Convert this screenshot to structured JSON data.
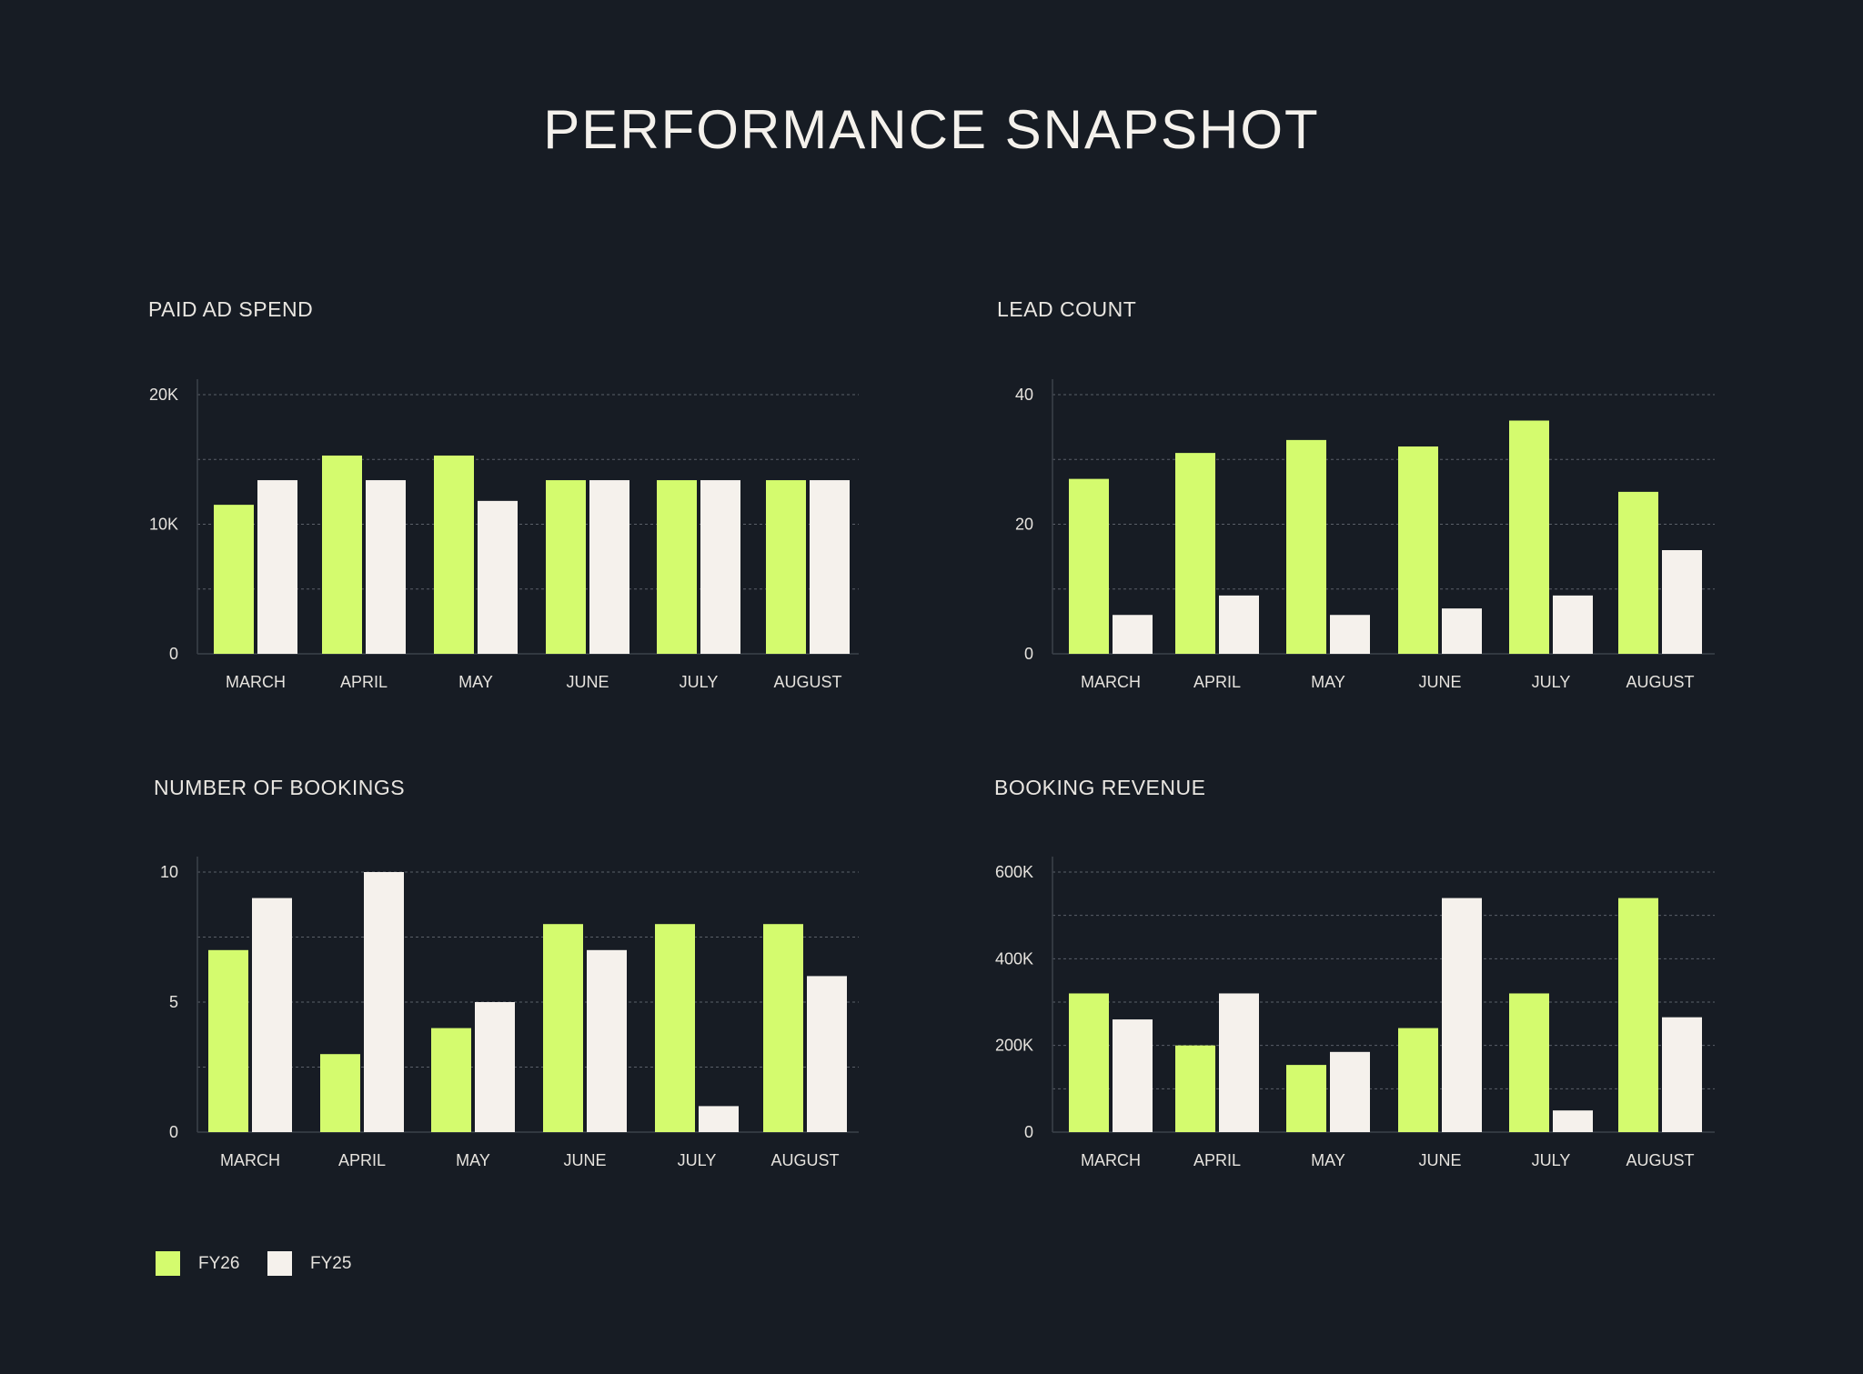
{
  "title": "PERFORMANCE SNAPSHOT",
  "colors": {
    "background": "#171c24",
    "fy26": "#d4fb6e",
    "fy25": "#f5f1ec",
    "text": "#f2efe9",
    "grid": "#5a5f68"
  },
  "legend": [
    {
      "label": "FY26",
      "color": "#d4fb6e"
    },
    {
      "label": "FY25",
      "color": "#f5f1ec"
    }
  ],
  "chart_data": [
    {
      "type": "bar",
      "title": "PAID AD SPEND",
      "categories": [
        "MARCH",
        "APRIL",
        "MAY",
        "JUNE",
        "JULY",
        "AUGUST"
      ],
      "series": [
        {
          "name": "FY26",
          "values": [
            11500,
            15300,
            15300,
            13400,
            13400,
            13400
          ]
        },
        {
          "name": "FY25",
          "values": [
            13400,
            13400,
            11800,
            13400,
            13400,
            13400
          ]
        }
      ],
      "yticks": [
        {
          "value": 0,
          "label": "0"
        },
        {
          "value": 10000,
          "label": "10K"
        },
        {
          "value": 20000,
          "label": "20K"
        }
      ],
      "ylim": [
        0,
        20000
      ],
      "grid": true
    },
    {
      "type": "bar",
      "title": "LEAD COUNT",
      "categories": [
        "MARCH",
        "APRIL",
        "MAY",
        "JUNE",
        "JULY",
        "AUGUST"
      ],
      "series": [
        {
          "name": "FY26",
          "values": [
            27,
            31,
            33,
            32,
            36,
            25
          ]
        },
        {
          "name": "FY25",
          "values": [
            6,
            9,
            6,
            7,
            9,
            16
          ]
        }
      ],
      "yticks": [
        {
          "value": 0,
          "label": "0"
        },
        {
          "value": 20,
          "label": "20"
        },
        {
          "value": 40,
          "label": "40"
        }
      ],
      "ylim": [
        0,
        40
      ],
      "grid": true
    },
    {
      "type": "bar",
      "title": "NUMBER OF BOOKINGS",
      "categories": [
        "MARCH",
        "APRIL",
        "MAY",
        "JUNE",
        "JULY",
        "AUGUST"
      ],
      "series": [
        {
          "name": "FY26",
          "values": [
            7,
            3,
            4,
            8,
            8,
            8
          ]
        },
        {
          "name": "FY25",
          "values": [
            9,
            10,
            5,
            7,
            1,
            6
          ]
        }
      ],
      "yticks": [
        {
          "value": 0,
          "label": "0"
        },
        {
          "value": 5,
          "label": "5"
        },
        {
          "value": 10,
          "label": "10"
        }
      ],
      "ylim": [
        0,
        10
      ],
      "grid": true
    },
    {
      "type": "bar",
      "title": "BOOKING REVENUE",
      "categories": [
        "MARCH",
        "APRIL",
        "MAY",
        "JUNE",
        "JULY",
        "AUGUST"
      ],
      "series": [
        {
          "name": "FY26",
          "values": [
            320000,
            200000,
            155000,
            240000,
            320000,
            540000
          ]
        },
        {
          "name": "FY25",
          "values": [
            260000,
            320000,
            185000,
            540000,
            50000,
            265000
          ]
        }
      ],
      "yticks": [
        {
          "value": 0,
          "label": "0"
        },
        {
          "value": 200000,
          "label": "200K"
        },
        {
          "value": 400000,
          "label": "400K"
        },
        {
          "value": 600000,
          "label": "600K"
        }
      ],
      "ylim": [
        0,
        600000
      ],
      "grid": true
    }
  ]
}
